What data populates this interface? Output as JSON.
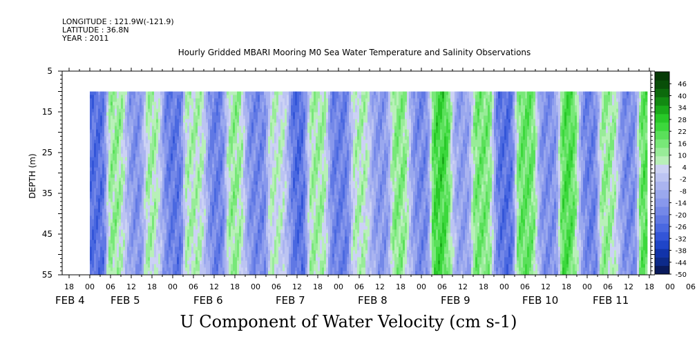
{
  "header": {
    "longitude": "LONGITUDE : 121.9W(-121.9)",
    "latitude": "LATITUDE : 36.8N",
    "year": "YEAR : 2011"
  },
  "chart_data": {
    "type": "heatmap",
    "title": "Hourly Gridded MBARI Mooring M0 Sea Water Temperature and Salinity Observations",
    "xlabel": "U Component of Water Velocity (cm s-1)",
    "ylabel": "DEPTH (m)",
    "ylim": [
      5,
      55
    ],
    "y_ticks": [
      5,
      15,
      25,
      35,
      45,
      55
    ],
    "x_hour_ticks": [
      "18",
      "00",
      "06",
      "12",
      "18",
      "00",
      "06",
      "12",
      "18",
      "00",
      "06",
      "12",
      "18",
      "00",
      "06",
      "12",
      "18",
      "00",
      "06",
      "12",
      "18",
      "00",
      "06",
      "12",
      "18",
      "00",
      "06",
      "12",
      "18",
      "00",
      "06",
      "12"
    ],
    "x_day_labels": [
      "FEB 4",
      "FEB 5",
      "FEB 6",
      "FEB 7",
      "FEB 8",
      "FEB 9",
      "FEB 10",
      "FEB 11"
    ],
    "data_depth_range": [
      10,
      55
    ],
    "colorbar": {
      "ticks": [
        46,
        40,
        34,
        28,
        22,
        16,
        10,
        4,
        -2,
        -8,
        -14,
        -20,
        -26,
        -32,
        -38,
        -44,
        -50
      ],
      "range": [
        -50,
        52
      ],
      "colors": [
        "#0a1a5c",
        "#0d2a8a",
        "#1133aa",
        "#1f45c8",
        "#3355d8",
        "#4a68e0",
        "#6078e4",
        "#7488e8",
        "#8898ec",
        "#9aa8ee",
        "#aab4f0",
        "#bcc4f2",
        "#ccd2f4",
        "#b8f0b8",
        "#98ec98",
        "#78e878",
        "#5ae05a",
        "#3cd83c",
        "#28c828",
        "#1aaa1a",
        "#128a12",
        "#0c6a0c",
        "#084e08",
        "#063a06"
      ]
    },
    "band_centers_day": [
      0.06,
      0.32,
      0.53,
      0.75,
      0.96,
      1.27,
      1.52,
      1.74,
      1.98,
      2.28,
      2.5,
      2.71,
      3.02,
      3.25,
      3.5,
      3.73,
      3.97,
      4.23,
      4.47,
      4.72,
      5.0,
      5.24,
      5.53,
      5.77,
      6.0,
      6.25,
      6.48,
      6.72,
      6.97,
      7.24,
      7.5,
      7.72
    ],
    "band_values": [
      -24,
      12,
      -16,
      10,
      -22,
      8,
      -20,
      12,
      -18,
      6,
      -26,
      10,
      -20,
      8,
      -14,
      14,
      -18,
      24,
      -12,
      16,
      -24,
      18,
      -16,
      22,
      -20,
      12,
      -18,
      20,
      -22,
      16,
      -14,
      18
    ]
  }
}
